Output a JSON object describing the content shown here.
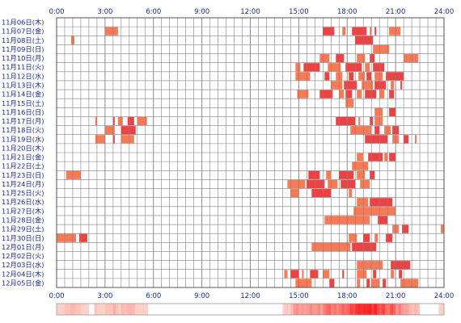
{
  "chart_data": {
    "type": "heatmap",
    "title": "",
    "xlabel": "",
    "ylabel": "",
    "xlim": [
      0,
      24
    ],
    "x_ticks": [
      "0:00",
      "3:00",
      "6:00",
      "9:00",
      "12:00",
      "15:00",
      "18:00",
      "21:00",
      "24:00"
    ],
    "rows": [
      {
        "label": "11月06日(木)",
        "intervals": []
      },
      {
        "label": "11月07日(金)",
        "intervals": [
          [
            3.0,
            3.8
          ],
          [
            16.5,
            17.2
          ],
          [
            17.7,
            17.9
          ],
          [
            18.3,
            19.2
          ],
          [
            19.4,
            19.5
          ],
          [
            19.7,
            19.8
          ],
          [
            20.6,
            21.3
          ]
        ]
      },
      {
        "label": "11月08日(土)",
        "intervals": [
          [
            0.9,
            1.1
          ],
          [
            18.5,
            19.6
          ]
        ]
      },
      {
        "label": "11月09日(日)",
        "intervals": [
          [
            19.6,
            20.6
          ]
        ]
      },
      {
        "label": "11月10日(月)",
        "intervals": [
          [
            16.3,
            16.9
          ],
          [
            17.3,
            17.8
          ],
          [
            18.6,
            19.1
          ],
          [
            19.4,
            19.7
          ],
          [
            21.5,
            22.4
          ]
        ]
      },
      {
        "label": "11月11日(火)",
        "intervals": [
          [
            14.8,
            15.1
          ],
          [
            15.3,
            16.3
          ],
          [
            16.8,
            17.6
          ],
          [
            17.9,
            18.9
          ],
          [
            19.1,
            19.4
          ],
          [
            19.6,
            20.3
          ]
        ]
      },
      {
        "label": "11月12日(水)",
        "intervals": [
          [
            14.8,
            15.7
          ],
          [
            16.6,
            16.9
          ],
          [
            17.3,
            17.7
          ],
          [
            18.1,
            18.4
          ],
          [
            18.7,
            19.1
          ],
          [
            19.2,
            19.5
          ],
          [
            19.7,
            20.2
          ],
          [
            20.4,
            21.5
          ]
        ]
      },
      {
        "label": "11月13日(木)",
        "intervals": [
          [
            17.0,
            17.7
          ],
          [
            17.8,
            18.6
          ],
          [
            18.9,
            19.6
          ],
          [
            19.7,
            20.4
          ],
          [
            20.7,
            20.9
          ],
          [
            21.3,
            21.4
          ]
        ]
      },
      {
        "label": "11月14日(金)",
        "intervals": [
          [
            14.9,
            15.6
          ],
          [
            16.3,
            17.1
          ],
          [
            17.5,
            17.8
          ],
          [
            17.9,
            18.3
          ],
          [
            18.6,
            18.9
          ],
          [
            19.1,
            19.8
          ],
          [
            20.0,
            20.3
          ],
          [
            20.6,
            20.9
          ]
        ]
      },
      {
        "label": "11月15日(土)",
        "intervals": [
          [
            17.9,
            18.4
          ]
        ]
      },
      {
        "label": "11月16日(日)",
        "intervals": [
          [
            19.7,
            20.2
          ],
          [
            20.6,
            21.0
          ]
        ]
      },
      {
        "label": "11月17日(月)",
        "intervals": [
          [
            2.4,
            2.5
          ],
          [
            3.5,
            3.6
          ],
          [
            3.8,
            4.1
          ],
          [
            4.4,
            4.8
          ],
          [
            5.0,
            5.6
          ],
          [
            17.3,
            18.5
          ],
          [
            18.7,
            18.8
          ],
          [
            19.4,
            19.6
          ],
          [
            19.7,
            20.2
          ]
        ]
      },
      {
        "label": "11月18日(火)",
        "intervals": [
          [
            3.0,
            3.6
          ],
          [
            4.0,
            4.9
          ],
          [
            18.2,
            19.5
          ],
          [
            19.7,
            20.0
          ],
          [
            20.3,
            20.7
          ],
          [
            20.8,
            21.2
          ]
        ]
      },
      {
        "label": "11月19日(水)",
        "intervals": [
          [
            2.4,
            3.0
          ],
          [
            3.5,
            3.6
          ],
          [
            4.0,
            4.8
          ],
          [
            19.1,
            20.5
          ],
          [
            20.8,
            21.2
          ],
          [
            21.5,
            21.8
          ],
          [
            22.2,
            22.3
          ]
        ]
      },
      {
        "label": "11月20日(木)",
        "intervals": []
      },
      {
        "label": "11月21日(金)",
        "intervals": [
          [
            18.6,
            19.0
          ],
          [
            19.3,
            20.2
          ],
          [
            20.3,
            20.5
          ],
          [
            20.6,
            21.0
          ]
        ]
      },
      {
        "label": "11月22日(土)",
        "intervals": [
          [
            18.3,
            19.3
          ]
        ]
      },
      {
        "label": "11月23日(日)",
        "intervals": [
          [
            0.6,
            1.5
          ],
          [
            15.6,
            16.3
          ],
          [
            16.7,
            17.0
          ],
          [
            17.5,
            18.4
          ],
          [
            18.6,
            19.1
          ],
          [
            19.4,
            19.7
          ]
        ]
      },
      {
        "label": "11月24日(月)",
        "intervals": [
          [
            14.3,
            15.4
          ],
          [
            15.5,
            16.6
          ],
          [
            16.8,
            17.4
          ],
          [
            17.6,
            18.5
          ],
          [
            18.8,
            19.4
          ]
        ]
      },
      {
        "label": "11月25日(火)",
        "intervals": [
          [
            14.5,
            15.0
          ],
          [
            15.8,
            17.0
          ],
          [
            18.1,
            18.3
          ]
        ]
      },
      {
        "label": "11月26日(水)",
        "intervals": [
          [
            18.6,
            19.3
          ],
          [
            19.4,
            20.8
          ]
        ]
      },
      {
        "label": "11月27日(木)",
        "intervals": [
          [
            18.4,
            21.0
          ]
        ]
      },
      {
        "label": "11月28日(金)",
        "intervals": [
          [
            16.6,
            19.4
          ],
          [
            19.9,
            20.5
          ]
        ]
      },
      {
        "label": "11月29日(土)",
        "intervals": [
          [
            20.8,
            21.2
          ],
          [
            21.4,
            21.8
          ],
          [
            23.8,
            24.0
          ]
        ]
      },
      {
        "label": "11月30日(日)",
        "intervals": [
          [
            0.0,
            1.2
          ],
          [
            1.4,
            1.9
          ],
          [
            18.1,
            18.6
          ],
          [
            19.0,
            19.4
          ],
          [
            19.7,
            19.9
          ],
          [
            20.4,
            20.8
          ]
        ]
      },
      {
        "label": "12月01日(月)",
        "intervals": [
          [
            15.8,
            18.2
          ],
          [
            18.3,
            19.8
          ]
        ]
      },
      {
        "label": "12月02日(火)",
        "intervals": []
      },
      {
        "label": "12月03日(水)",
        "intervals": [
          [
            18.6,
            20.2
          ],
          [
            20.7,
            21.9
          ]
        ]
      },
      {
        "label": "12月04日(木)",
        "intervals": [
          [
            14.1,
            14.3
          ],
          [
            14.5,
            15.0
          ],
          [
            15.2,
            15.3
          ],
          [
            15.7,
            16.2
          ],
          [
            16.5,
            16.9
          ],
          [
            17.7,
            17.8
          ],
          [
            18.6,
            19.2
          ],
          [
            19.6,
            19.8
          ],
          [
            20.7,
            20.9
          ],
          [
            21.2,
            21.4
          ]
        ]
      },
      {
        "label": "12月05日(金)",
        "intervals": [
          [
            14.8,
            15.8
          ],
          [
            16.9,
            17.2
          ],
          [
            18.6,
            18.8
          ],
          [
            19.2,
            19.4
          ],
          [
            19.5,
            20.0
          ],
          [
            20.2,
            20.4
          ],
          [
            21.3,
            22.4
          ]
        ]
      }
    ],
    "summary_strip": "per-time-slot frequency shown as color intensity",
    "colors": {
      "bar_light": "#f6734d",
      "bar_dark": "#e8393a",
      "grid": "#808080",
      "frame": "#555555",
      "tick_text": "#1a2a8a",
      "heat_low": "#ffe9e3",
      "heat_high": "#ff2020"
    }
  }
}
